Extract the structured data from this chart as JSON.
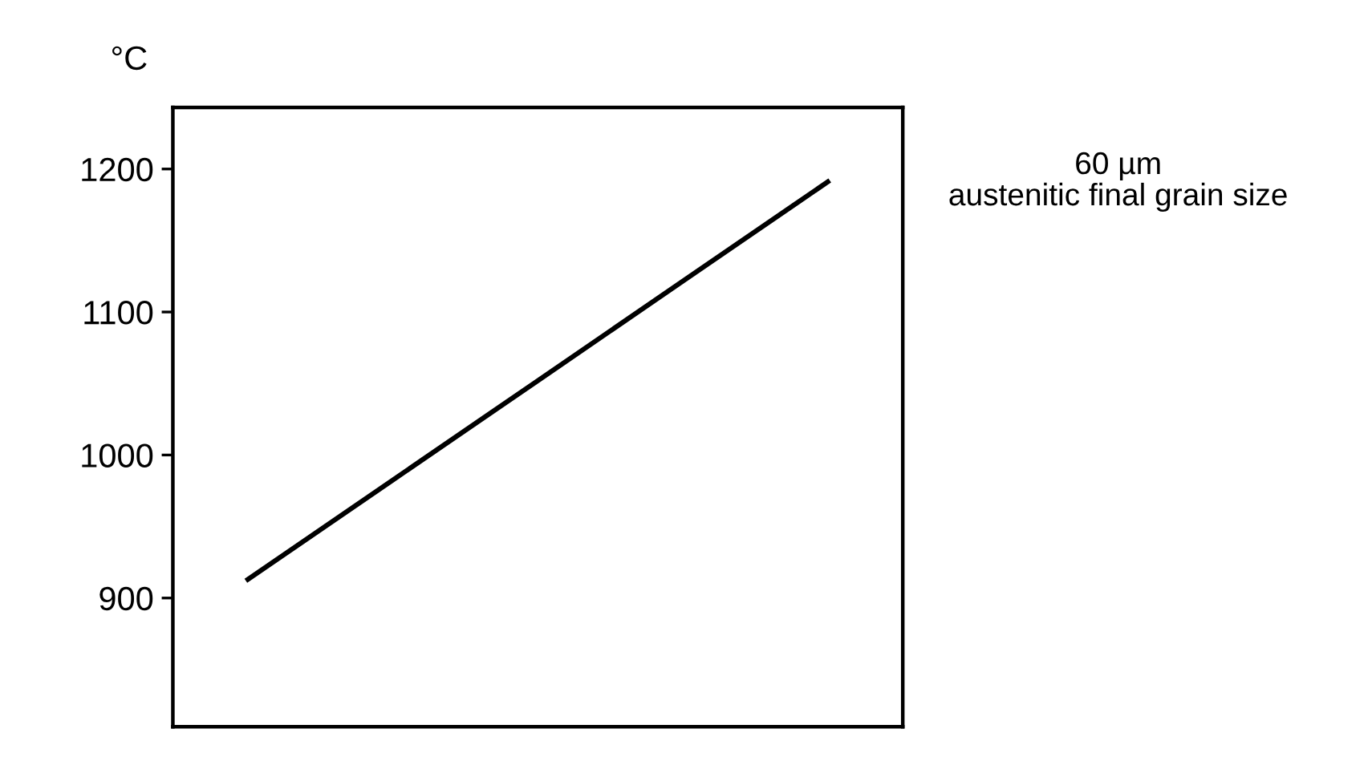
{
  "chart_data": {
    "type": "line",
    "ylabel": "°C",
    "categories": [
      null,
      null,
      null,
      null,
      null
    ],
    "series": [
      {
        "color": "#000000",
        "values": [
          912,
          982,
          1052,
          1122,
          1192
        ]
      }
    ],
    "ylim": [
      810,
      1243
    ],
    "yticks": [
      900,
      1000,
      1100,
      1200
    ],
    "grid": false,
    "marker": "none",
    "line_style": "solid",
    "annotations": [
      "60 µm\naustenitic final grain size"
    ]
  }
}
